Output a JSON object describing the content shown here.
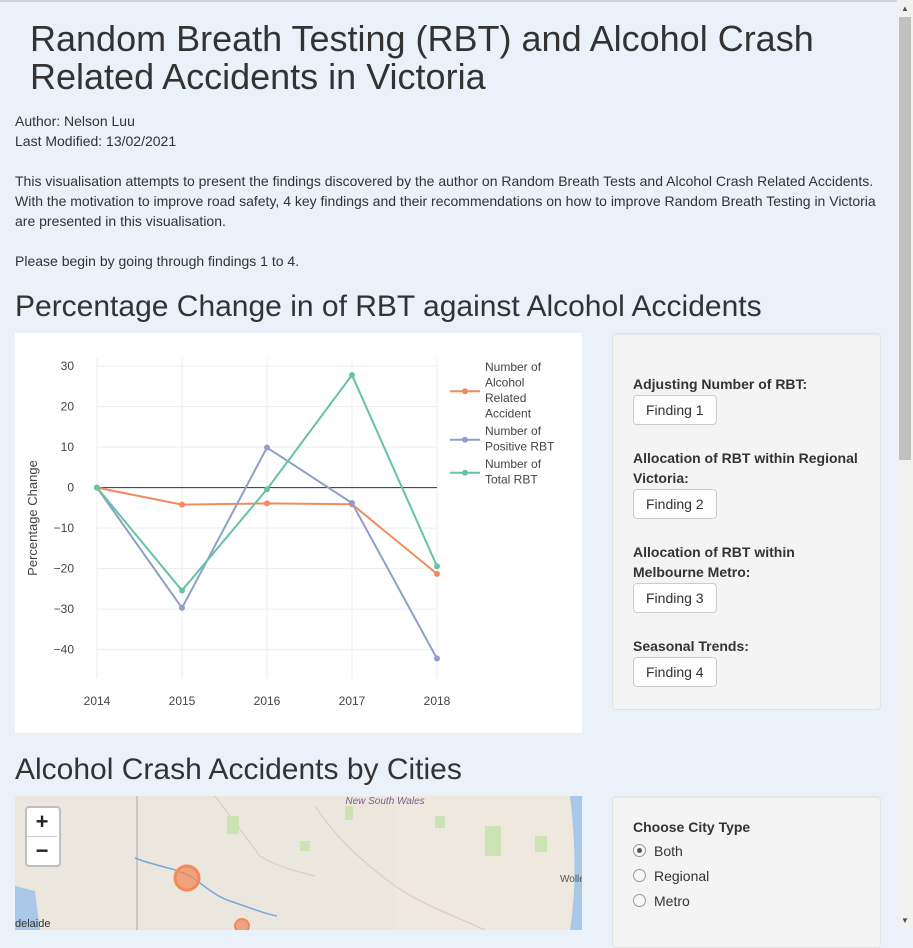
{
  "title": "Random Breath Testing (RBT) and Alcohol Crash Related Accidents in Victoria",
  "author": "Author: Nelson Luu",
  "last_modified": "Last Modified: 13/02/2021",
  "intro": "This visualisation attempts to present the findings discovered by the author on Random Breath Tests and Alcohol Crash Related Accidents. With the motivation to improve road safety, 4 key findings and their recommendations on how to improve Random Breath Testing in Victoria are presented in this visualisation.",
  "begin_text": "Please begin by going through findings 1 to 4.",
  "section1_title": "Percentage Change in of RBT against Alcohol Accidents",
  "section2_title": "Alcohol Crash Accidents by Cities",
  "findings_panel": {
    "items": [
      {
        "label": "Adjusting Number of RBT:",
        "button": "Finding 1"
      },
      {
        "label": "Allocation of RBT within Regional Victoria:",
        "button": "Finding 2"
      },
      {
        "label": "Allocation of RBT within Melbourne Metro:",
        "button": "Finding 3"
      },
      {
        "label": "Seasonal Trends:",
        "button": "Finding 4"
      }
    ]
  },
  "city_panel": {
    "label": "Choose City Type",
    "options": [
      "Both",
      "Regional",
      "Metro"
    ],
    "selected": "Both"
  },
  "map": {
    "zoom_in": "+",
    "zoom_out": "−",
    "labels": [
      "New South Wales",
      "Wolle",
      "delaide"
    ]
  },
  "colors": {
    "alcohol": "#f28b5b",
    "positive": "#8e9fcb",
    "total": "#66c2a5"
  },
  "chart_data": {
    "type": "line",
    "x": [
      2014,
      2015,
      2016,
      2017,
      2018
    ],
    "ylabel": "Percentage Change",
    "xlabel": "",
    "ylim": [
      -47,
      32
    ],
    "yticks": [
      30,
      20,
      10,
      0,
      -10,
      -20,
      -30,
      -40
    ],
    "ytick_labels": [
      "30",
      "20",
      "10",
      "0",
      "−10",
      "−20",
      "−30",
      "−40"
    ],
    "grid": true,
    "legend_position": "right",
    "series": [
      {
        "name": "Number of Alcohol Related Accident",
        "legend_lines": [
          "Number of",
          "Alcohol",
          "Related",
          "Accident"
        ],
        "color": "#f28b5b",
        "values": [
          0,
          -4.2,
          -3.9,
          -4.1,
          -21.3
        ]
      },
      {
        "name": "Number of Positive RBT",
        "legend_lines": [
          "Number of",
          "Positive RBT"
        ],
        "color": "#8e9fcb",
        "values": [
          0,
          -29.7,
          9.9,
          -3.8,
          -42.2
        ]
      },
      {
        "name": "Number of Total RBT",
        "legend_lines": [
          "Number of",
          "Total RBT"
        ],
        "color": "#66c2a5",
        "values": [
          0,
          -25.4,
          -0.4,
          27.8,
          -19.4
        ]
      }
    ]
  }
}
